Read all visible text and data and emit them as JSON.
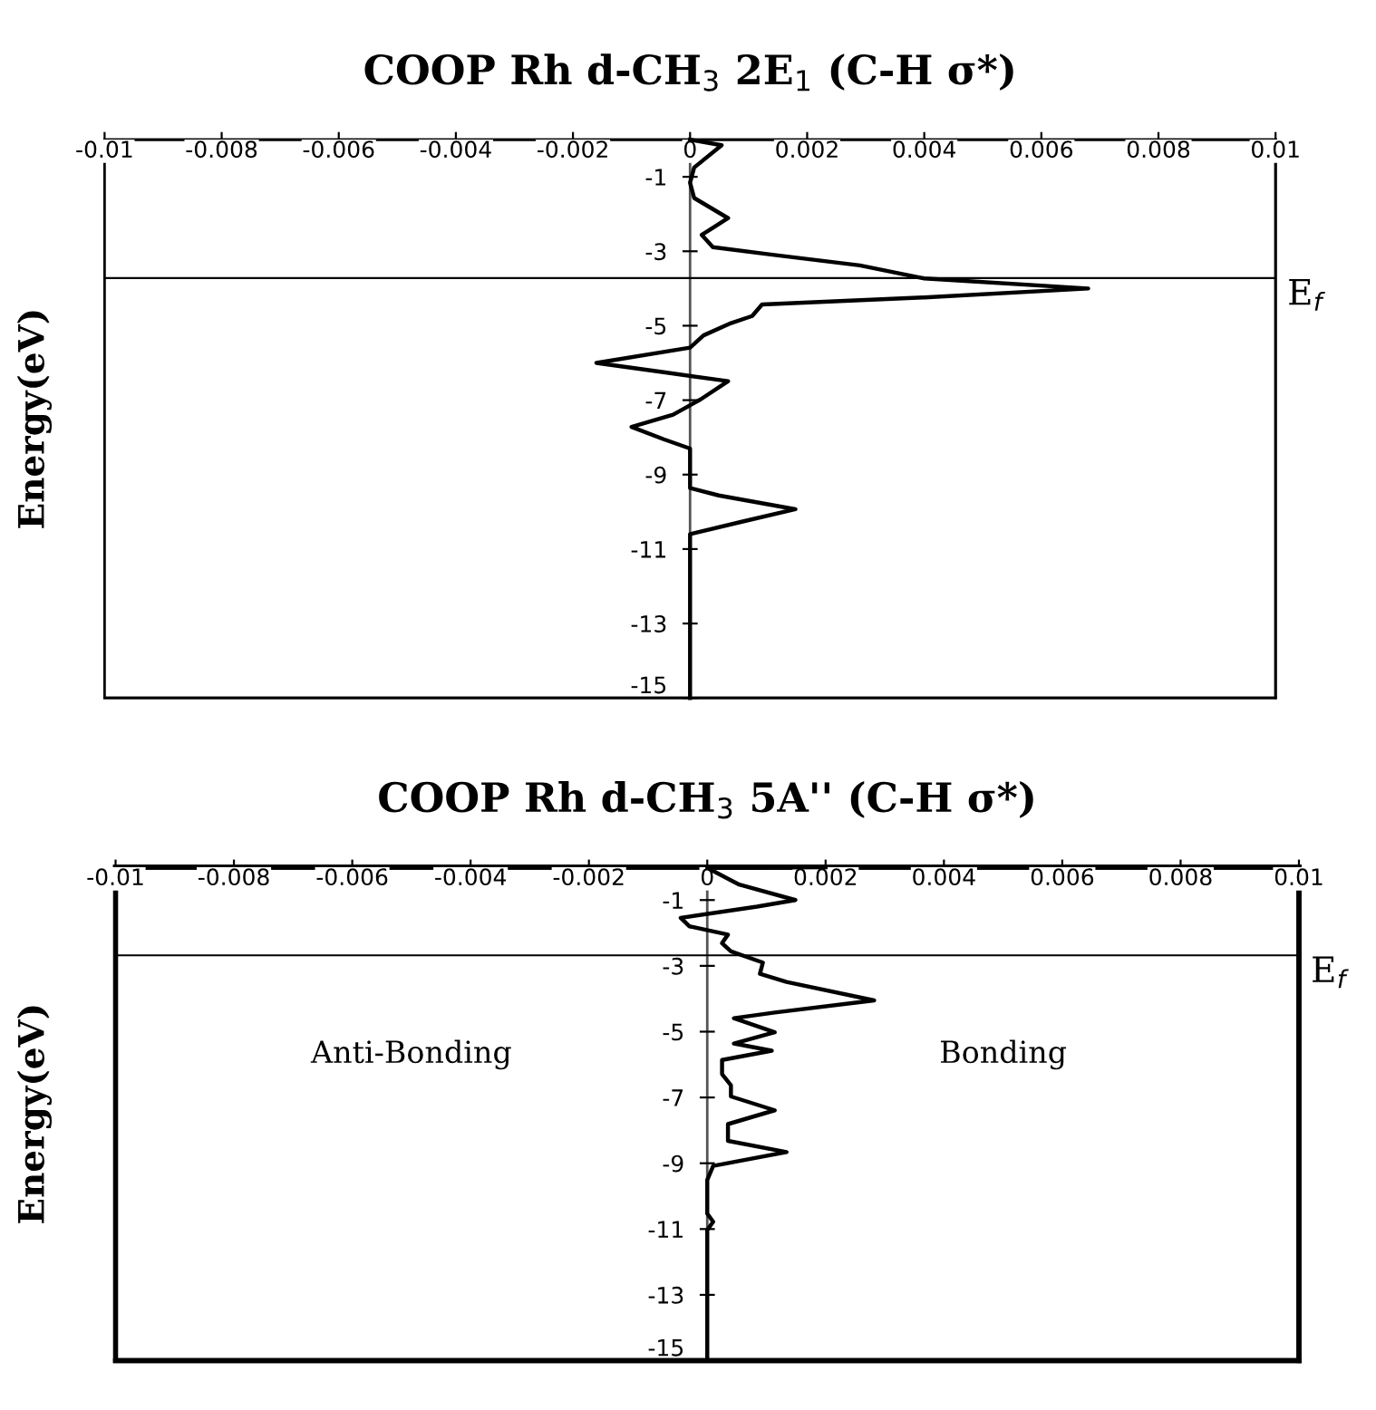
{
  "chart_data": [
    {
      "type": "line",
      "title": "COOP Rh d-CH$_{3}$ 2E$_{1}$ (C-H σ*)",
      "ylabel": "Energy(eV)",
      "xlim": [
        -0.01,
        0.01
      ],
      "xticks": [
        -0.01,
        -0.008,
        -0.006,
        -0.004,
        -0.002,
        0,
        0.002,
        0.004,
        0.006,
        0.008,
        0.01
      ],
      "ylim": [
        -15,
        0
      ],
      "yticks": [
        -1,
        -3,
        -5,
        -7,
        -9,
        -11,
        -13,
        -15
      ],
      "series": [
        {
          "color": "#000000",
          "x": [
            0,
            0.00054,
            7e-05,
            0,
            7e-05,
            0.00065,
            0.0002,
            0.00039,
            0.00144,
            0.0029,
            0.004,
            0.0068,
            0.004,
            0.00123,
            0.00106,
            0.0007,
            0.00023,
            0,
            -0.0016,
            -0.00045,
            0.00065,
            0.00018,
            -0.00029,
            -0.001,
            -0.00045,
            0,
            0,
            0.00049,
            0.0018,
            0.0009,
            0,
            0
          ],
          "values": [
            0,
            -0.15,
            -0.75,
            -1.16,
            -1.57,
            -2.11,
            -2.56,
            -2.89,
            -3.1,
            -3.38,
            -3.73,
            -4.0,
            -4.24,
            -4.43,
            -4.74,
            -4.93,
            -5.26,
            -5.59,
            -6.0,
            -6.25,
            -6.49,
            -6.98,
            -7.39,
            -7.72,
            -8.05,
            -8.3,
            -9.36,
            -9.56,
            -9.93,
            -10.26,
            -10.6,
            -15
          ]
        }
      ],
      "ref_lines": [
        {
          "axis": "y",
          "value": -3.72,
          "label": "E$_{f}$",
          "color": "#000000"
        }
      ],
      "grid": false,
      "marker": "none",
      "line_style": "solid"
    },
    {
      "type": "line",
      "title": "COOP Rh d-CH$_{3}$ 5A'' (C-H σ*)",
      "ylabel": "Energy(eV)",
      "xlim": [
        -0.01,
        0.01
      ],
      "xticks": [
        -0.01,
        -0.008,
        -0.006,
        -0.004,
        -0.002,
        0,
        0.002,
        0.004,
        0.006,
        0.008,
        0.01
      ],
      "ylim": [
        -15,
        0
      ],
      "yticks": [
        -1,
        -3,
        -5,
        -7,
        -9,
        -11,
        -13,
        -15
      ],
      "series": [
        {
          "color": "#000000",
          "x": [
            0.002,
            0,
            0.00054,
            0.00149,
            0.00084,
            -0.00045,
            -0.0003,
            0.00035,
            0.00025,
            0.0004,
            0.00094,
            0.00089,
            0.00134,
            0.00282,
            0.00114,
            0.00045,
            0.00114,
            0.00045,
            0.00109,
            0.00025,
            0.00025,
            0.0004,
            0.0004,
            0.00114,
            0.00035,
            0.00035,
            0.00134,
            0.0001,
            0,
            0,
            0.0001,
            0,
            0
          ],
          "values": [
            0,
            -0.02,
            -0.53,
            -1.0,
            -1.2,
            -1.54,
            -1.8,
            -2.05,
            -2.31,
            -2.56,
            -2.9,
            -3.24,
            -3.49,
            -4.05,
            -4.42,
            -4.59,
            -5.02,
            -5.36,
            -5.58,
            -5.86,
            -6.29,
            -6.63,
            -6.97,
            -7.39,
            -7.81,
            -8.32,
            -8.66,
            -9.08,
            -9.51,
            -10.53,
            -10.78,
            -11.03,
            -15
          ]
        }
      ],
      "ref_lines": [
        {
          "axis": "y",
          "value": -2.68,
          "label": "E$_{f}$",
          "color": "#000000"
        }
      ],
      "annotations": [
        "Anti-Bonding",
        "Bonding"
      ],
      "grid": false,
      "marker": "none",
      "line_style": "solid"
    }
  ]
}
